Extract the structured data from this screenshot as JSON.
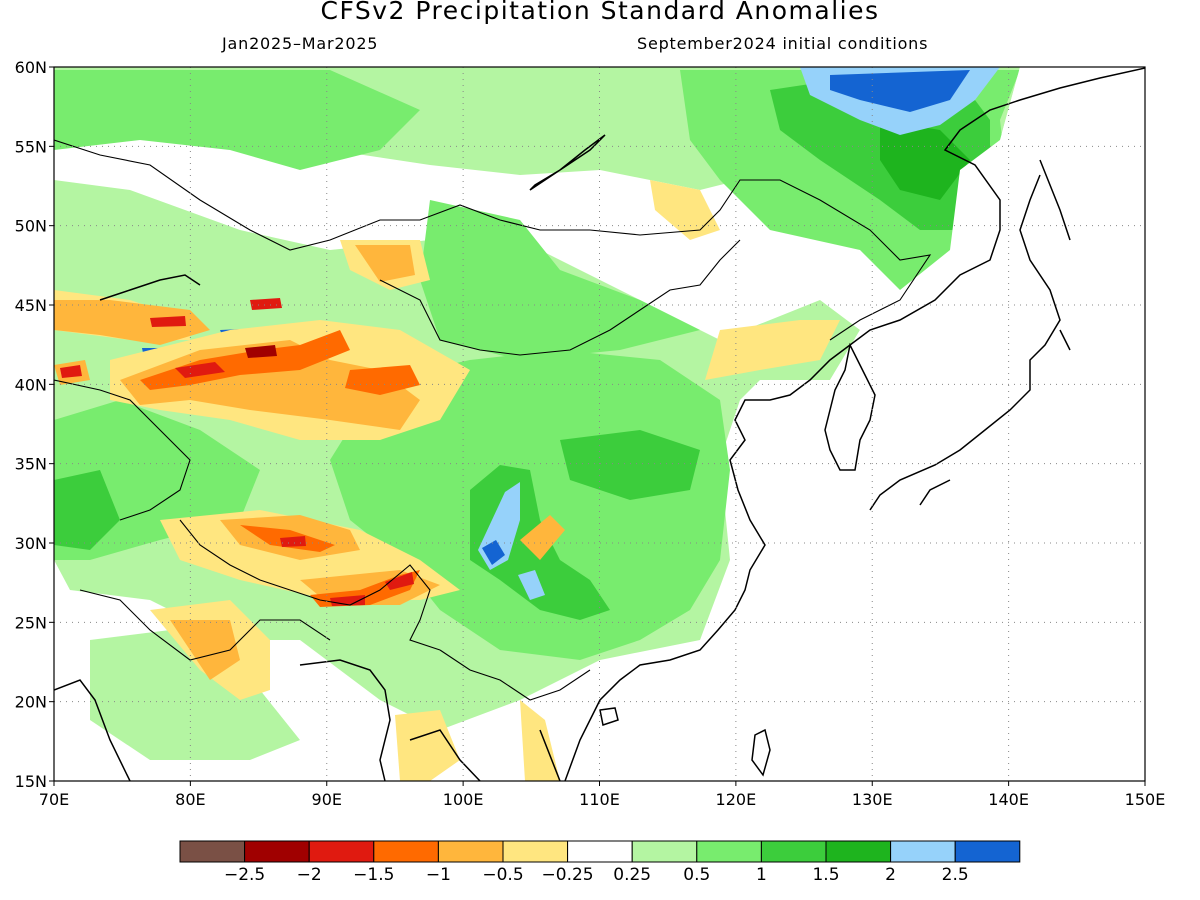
{
  "title": "CFSv2 Precipitation Standard Anomalies",
  "subtitle_left": "Jan2025–Mar2025",
  "subtitle_right": "September2024 initial conditions",
  "map": {
    "lon_range": [
      70,
      150
    ],
    "lat_range": [
      15,
      60
    ],
    "lat_ticks": [
      {
        "value": 15,
        "label": "15N"
      },
      {
        "value": 20,
        "label": "20N"
      },
      {
        "value": 25,
        "label": "25N"
      },
      {
        "value": 30,
        "label": "30N"
      },
      {
        "value": 35,
        "label": "35N"
      },
      {
        "value": 40,
        "label": "40N"
      },
      {
        "value": 45,
        "label": "45N"
      },
      {
        "value": 50,
        "label": "50N"
      },
      {
        "value": 55,
        "label": "55N"
      },
      {
        "value": 60,
        "label": "60N"
      }
    ],
    "lon_ticks": [
      {
        "value": 70,
        "label": "70E"
      },
      {
        "value": 80,
        "label": "80E"
      },
      {
        "value": 90,
        "label": "90E"
      },
      {
        "value": 100,
        "label": "100E"
      },
      {
        "value": 110,
        "label": "110E"
      },
      {
        "value": 120,
        "label": "120E"
      },
      {
        "value": 130,
        "label": "130E"
      },
      {
        "value": 140,
        "label": "140E"
      },
      {
        "value": 150,
        "label": "150E"
      }
    ],
    "grid": "dotted"
  },
  "colorbar": {
    "colors": [
      "#7a5045",
      "#a00000",
      "#e01a10",
      "#ff6a00",
      "#ffb63c",
      "#ffe680",
      "#ffffff",
      "#b4f5a2",
      "#78ec6e",
      "#3ccd3c",
      "#1eb41e",
      "#96d2fa",
      "#1464d2"
    ],
    "labels": [
      "−2.5",
      "−2",
      "−1.5",
      "−1",
      "−0.5",
      "−0.25",
      "0.25",
      "0.5",
      "1",
      "1.5",
      "2",
      "2.5"
    ]
  },
  "colors": {
    "wet_light": "#b4f5a2",
    "wet_mid": "#78ec6e",
    "wet_strong": "#3ccd3c",
    "wet_vstrong": "#1eb41e",
    "wet_blue_light": "#96d2fa",
    "wet_blue": "#1464d2",
    "dry_light": "#ffe680",
    "dry_mid": "#ffb63c",
    "dry_strong": "#ff6a00",
    "dry_vstrong": "#e01a10",
    "dry_extreme": "#a00000"
  }
}
